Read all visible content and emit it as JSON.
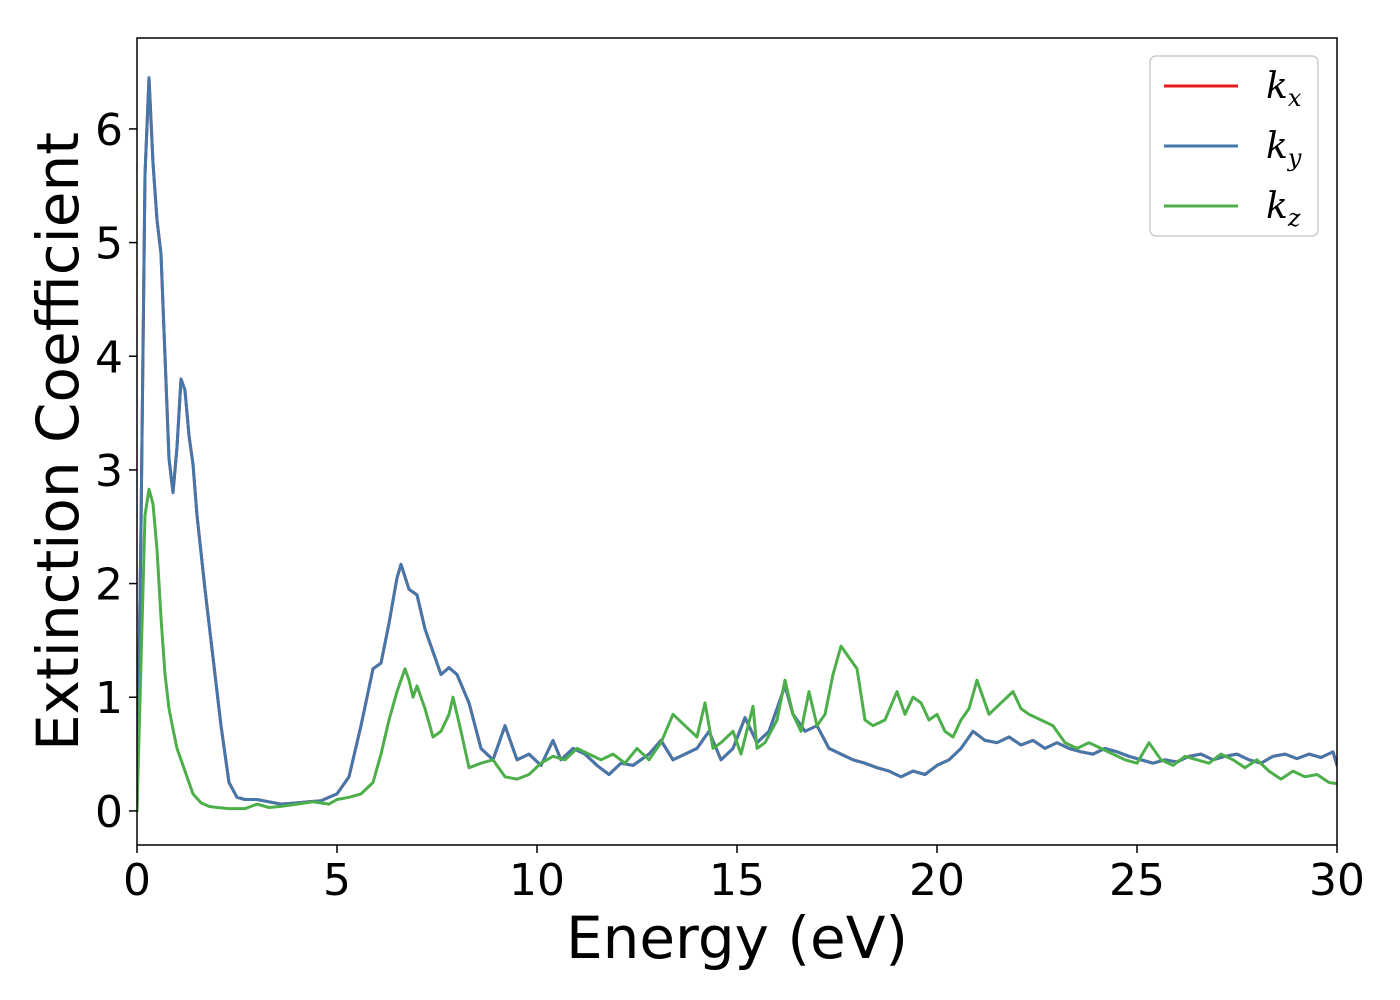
{
  "chart_data": {
    "type": "line",
    "xlabel": "Energy (eV)",
    "ylabel": "Extinction Coefficient",
    "xlim": [
      0,
      30
    ],
    "ylim": [
      -0.3,
      6.8
    ],
    "xticks": [
      0,
      5,
      10,
      15,
      20,
      25,
      30
    ],
    "yticks": [
      0,
      1,
      2,
      3,
      4,
      5,
      6
    ],
    "grid": false,
    "legend_position": "top-right",
    "series": [
      {
        "name": "k_x",
        "label_main": "k",
        "label_sub": "x",
        "color": "#e41a1c",
        "x": [
          0,
          0.1,
          0.2,
          0.3,
          0.4,
          0.5,
          0.6,
          0.7,
          0.8,
          0.9,
          1.0,
          1.1,
          1.2,
          1.3,
          1.4,
          1.5,
          1.7,
          1.9,
          2.1,
          2.3,
          2.5,
          2.7,
          3.0,
          3.3,
          3.6,
          4.0,
          4.3,
          4.6,
          5.0,
          5.3,
          5.6,
          5.9,
          6.1,
          6.3,
          6.5,
          6.6,
          6.8,
          7.0,
          7.2,
          7.4,
          7.6,
          7.8,
          8.0,
          8.3,
          8.6,
          8.9,
          9.2,
          9.5,
          9.8,
          10.1,
          10.4,
          10.6,
          10.9,
          11.2,
          11.5,
          11.8,
          12.1,
          12.4,
          12.8,
          13.1,
          13.4,
          13.7,
          14.0,
          14.3,
          14.6,
          14.9,
          15.2,
          15.5,
          15.8,
          16.0,
          16.2,
          16.4,
          16.7,
          17.0,
          17.3,
          17.6,
          17.9,
          18.2,
          18.5,
          18.8,
          19.1,
          19.4,
          19.7,
          20.0,
          20.3,
          20.6,
          20.9,
          21.2,
          21.5,
          21.8,
          22.1,
          22.4,
          22.7,
          23.0,
          23.3,
          23.6,
          23.9,
          24.2,
          24.5,
          24.8,
          25.1,
          25.4,
          25.7,
          26.0,
          26.3,
          26.6,
          26.9,
          27.2,
          27.5,
          27.8,
          28.1,
          28.4,
          28.7,
          29.0,
          29.3,
          29.6,
          29.9,
          30.0
        ],
        "y": [
          0.0,
          2.5,
          5.6,
          6.45,
          5.7,
          5.2,
          4.9,
          4.0,
          3.1,
          2.8,
          3.2,
          3.8,
          3.7,
          3.3,
          3.05,
          2.6,
          1.95,
          1.35,
          0.75,
          0.25,
          0.12,
          0.1,
          0.1,
          0.08,
          0.06,
          0.07,
          0.08,
          0.09,
          0.15,
          0.3,
          0.75,
          1.25,
          1.3,
          1.65,
          2.05,
          2.17,
          1.95,
          1.9,
          1.6,
          1.4,
          1.2,
          1.26,
          1.2,
          0.95,
          0.55,
          0.45,
          0.75,
          0.45,
          0.5,
          0.4,
          0.62,
          0.45,
          0.55,
          0.5,
          0.4,
          0.32,
          0.42,
          0.4,
          0.5,
          0.62,
          0.45,
          0.5,
          0.55,
          0.7,
          0.45,
          0.55,
          0.82,
          0.6,
          0.7,
          0.9,
          1.1,
          0.85,
          0.7,
          0.75,
          0.55,
          0.5,
          0.45,
          0.42,
          0.38,
          0.35,
          0.3,
          0.35,
          0.32,
          0.4,
          0.45,
          0.55,
          0.7,
          0.62,
          0.6,
          0.65,
          0.58,
          0.62,
          0.55,
          0.6,
          0.55,
          0.52,
          0.5,
          0.55,
          0.52,
          0.48,
          0.45,
          0.42,
          0.45,
          0.43,
          0.48,
          0.5,
          0.45,
          0.48,
          0.5,
          0.45,
          0.42,
          0.48,
          0.5,
          0.46,
          0.5,
          0.47,
          0.52,
          0.4
        ]
      },
      {
        "name": "k_y",
        "label_main": "k",
        "label_sub": "y",
        "color": "#4477aa",
        "x": [
          0,
          0.1,
          0.2,
          0.3,
          0.4,
          0.5,
          0.6,
          0.7,
          0.8,
          0.9,
          1.0,
          1.1,
          1.2,
          1.3,
          1.4,
          1.5,
          1.7,
          1.9,
          2.1,
          2.3,
          2.5,
          2.7,
          3.0,
          3.3,
          3.6,
          4.0,
          4.3,
          4.6,
          5.0,
          5.3,
          5.6,
          5.9,
          6.1,
          6.3,
          6.5,
          6.6,
          6.8,
          7.0,
          7.2,
          7.4,
          7.6,
          7.8,
          8.0,
          8.3,
          8.6,
          8.9,
          9.2,
          9.5,
          9.8,
          10.1,
          10.4,
          10.6,
          10.9,
          11.2,
          11.5,
          11.8,
          12.1,
          12.4,
          12.8,
          13.1,
          13.4,
          13.7,
          14.0,
          14.3,
          14.6,
          14.9,
          15.2,
          15.5,
          15.8,
          16.0,
          16.2,
          16.4,
          16.7,
          17.0,
          17.3,
          17.6,
          17.9,
          18.2,
          18.5,
          18.8,
          19.1,
          19.4,
          19.7,
          20.0,
          20.3,
          20.6,
          20.9,
          21.2,
          21.5,
          21.8,
          22.1,
          22.4,
          22.7,
          23.0,
          23.3,
          23.6,
          23.9,
          24.2,
          24.5,
          24.8,
          25.1,
          25.4,
          25.7,
          26.0,
          26.3,
          26.6,
          26.9,
          27.2,
          27.5,
          27.8,
          28.1,
          28.4,
          28.7,
          29.0,
          29.3,
          29.6,
          29.9,
          30.0
        ],
        "y": [
          0.0,
          2.5,
          5.6,
          6.45,
          5.7,
          5.2,
          4.9,
          4.0,
          3.1,
          2.8,
          3.2,
          3.8,
          3.7,
          3.3,
          3.05,
          2.6,
          1.95,
          1.35,
          0.75,
          0.25,
          0.12,
          0.1,
          0.1,
          0.08,
          0.06,
          0.07,
          0.08,
          0.09,
          0.15,
          0.3,
          0.75,
          1.25,
          1.3,
          1.65,
          2.05,
          2.17,
          1.95,
          1.9,
          1.6,
          1.4,
          1.2,
          1.26,
          1.2,
          0.95,
          0.55,
          0.45,
          0.75,
          0.45,
          0.5,
          0.4,
          0.62,
          0.45,
          0.55,
          0.5,
          0.4,
          0.32,
          0.42,
          0.4,
          0.5,
          0.62,
          0.45,
          0.5,
          0.55,
          0.7,
          0.45,
          0.55,
          0.82,
          0.6,
          0.7,
          0.9,
          1.1,
          0.85,
          0.7,
          0.75,
          0.55,
          0.5,
          0.45,
          0.42,
          0.38,
          0.35,
          0.3,
          0.35,
          0.32,
          0.4,
          0.45,
          0.55,
          0.7,
          0.62,
          0.6,
          0.65,
          0.58,
          0.62,
          0.55,
          0.6,
          0.55,
          0.52,
          0.5,
          0.55,
          0.52,
          0.48,
          0.45,
          0.42,
          0.45,
          0.43,
          0.48,
          0.5,
          0.45,
          0.48,
          0.5,
          0.45,
          0.42,
          0.48,
          0.5,
          0.46,
          0.5,
          0.47,
          0.52,
          0.4
        ]
      },
      {
        "name": "k_z",
        "label_main": "k",
        "label_sub": "z",
        "color": "#4daf4a",
        "x": [
          0,
          0.1,
          0.2,
          0.3,
          0.4,
          0.5,
          0.6,
          0.7,
          0.8,
          0.9,
          1.0,
          1.2,
          1.4,
          1.6,
          1.8,
          2.0,
          2.3,
          2.7,
          3.0,
          3.3,
          3.6,
          4.0,
          4.4,
          4.8,
          5.0,
          5.3,
          5.6,
          5.9,
          6.1,
          6.3,
          6.5,
          6.7,
          6.8,
          6.9,
          7.0,
          7.2,
          7.4,
          7.6,
          7.8,
          7.9,
          8.1,
          8.3,
          8.6,
          8.9,
          9.2,
          9.5,
          9.8,
          10.1,
          10.4,
          10.7,
          11.0,
          11.3,
          11.6,
          11.9,
          12.2,
          12.5,
          12.8,
          13.1,
          13.4,
          13.7,
          14.0,
          14.2,
          14.4,
          14.6,
          14.9,
          15.1,
          15.4,
          15.5,
          15.7,
          16.0,
          16.2,
          16.4,
          16.6,
          16.8,
          17.0,
          17.2,
          17.4,
          17.6,
          17.8,
          18.0,
          18.2,
          18.4,
          18.7,
          19.0,
          19.2,
          19.4,
          19.6,
          19.8,
          20.0,
          20.2,
          20.4,
          20.6,
          20.8,
          21.0,
          21.3,
          21.6,
          21.9,
          22.1,
          22.3,
          22.6,
          22.9,
          23.2,
          23.5,
          23.8,
          24.1,
          24.4,
          24.7,
          25.0,
          25.3,
          25.6,
          25.9,
          26.2,
          26.5,
          26.8,
          27.1,
          27.4,
          27.7,
          28.0,
          28.3,
          28.6,
          28.9,
          29.2,
          29.5,
          29.8,
          30.0
        ],
        "y": [
          0.0,
          1.3,
          2.6,
          2.83,
          2.7,
          2.3,
          1.7,
          1.2,
          0.9,
          0.72,
          0.55,
          0.35,
          0.15,
          0.07,
          0.04,
          0.03,
          0.02,
          0.02,
          0.06,
          0.03,
          0.04,
          0.06,
          0.08,
          0.06,
          0.1,
          0.12,
          0.15,
          0.25,
          0.5,
          0.8,
          1.05,
          1.25,
          1.15,
          1.0,
          1.1,
          0.9,
          0.65,
          0.7,
          0.85,
          1.0,
          0.7,
          0.38,
          0.42,
          0.45,
          0.3,
          0.28,
          0.32,
          0.42,
          0.48,
          0.45,
          0.55,
          0.5,
          0.45,
          0.5,
          0.42,
          0.55,
          0.45,
          0.6,
          0.85,
          0.75,
          0.65,
          0.95,
          0.55,
          0.6,
          0.7,
          0.5,
          0.92,
          0.55,
          0.6,
          0.8,
          1.15,
          0.85,
          0.7,
          1.05,
          0.75,
          0.85,
          1.2,
          1.45,
          1.35,
          1.25,
          0.8,
          0.75,
          0.8,
          1.05,
          0.85,
          1.0,
          0.95,
          0.8,
          0.85,
          0.7,
          0.65,
          0.8,
          0.9,
          1.15,
          0.85,
          0.95,
          1.05,
          0.9,
          0.85,
          0.8,
          0.75,
          0.6,
          0.55,
          0.6,
          0.55,
          0.5,
          0.45,
          0.42,
          0.6,
          0.45,
          0.4,
          0.48,
          0.45,
          0.42,
          0.5,
          0.45,
          0.38,
          0.45,
          0.35,
          0.28,
          0.35,
          0.3,
          0.32,
          0.25,
          0.24
        ]
      }
    ]
  }
}
